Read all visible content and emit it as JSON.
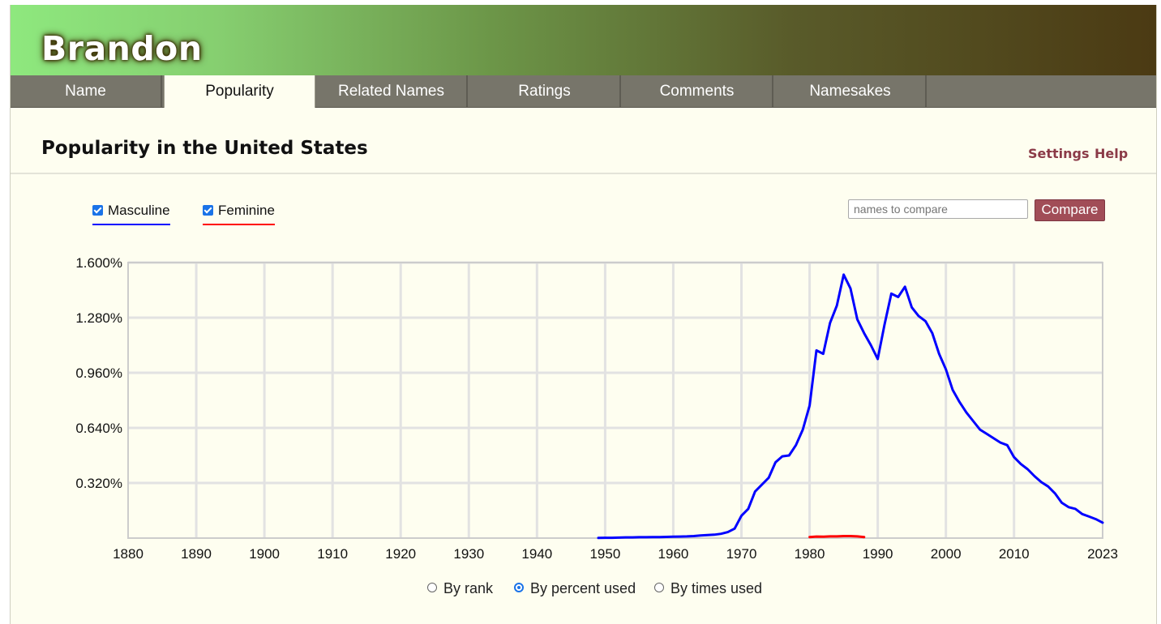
{
  "header": {
    "name": "Brandon"
  },
  "tabs": [
    {
      "label": "Name"
    },
    {
      "label": "Popularity"
    },
    {
      "label": "Related Names"
    },
    {
      "label": "Ratings"
    },
    {
      "label": "Comments"
    },
    {
      "label": "Namesakes"
    }
  ],
  "active_tab": 1,
  "section": {
    "title": "Popularity in the United States",
    "settings": "Settings",
    "help": "Help"
  },
  "filters": {
    "masculine": {
      "label": "Masculine",
      "checked": true,
      "color": "#0000ff"
    },
    "feminine": {
      "label": "Feminine",
      "checked": true,
      "color": "#ff0000"
    }
  },
  "compare": {
    "placeholder": "names to compare",
    "button": "Compare"
  },
  "radios": [
    {
      "label": "By rank",
      "selected": false
    },
    {
      "label": "By percent used",
      "selected": true
    },
    {
      "label": "By times used",
      "selected": false
    }
  ],
  "colors": {
    "accent": "#8b3a47",
    "button": "#a14d57",
    "tabbar": "#77756a"
  },
  "chart_data": {
    "type": "line",
    "ylim": [
      0,
      1.6
    ],
    "xlim": [
      1880,
      2023
    ],
    "y_ticks": [
      "1.600%",
      "1.280%",
      "0.960%",
      "0.640%",
      "0.320%"
    ],
    "y_tick_values": [
      1.6,
      1.28,
      0.96,
      0.64,
      0.32
    ],
    "x_ticks": [
      "1880",
      "1890",
      "1900",
      "1910",
      "1920",
      "1930",
      "1940",
      "1950",
      "1960",
      "1970",
      "1980",
      "1990",
      "2000",
      "2010",
      "2023"
    ],
    "x_tick_values": [
      1880,
      1890,
      1900,
      1910,
      1920,
      1930,
      1940,
      1950,
      1960,
      1970,
      1980,
      1990,
      2000,
      2010,
      2023
    ],
    "grid": true,
    "series": [
      {
        "name": "Masculine",
        "color": "#0000ff",
        "x": [
          1949,
          1950,
          1951,
          1952,
          1953,
          1954,
          1955,
          1956,
          1957,
          1958,
          1959,
          1960,
          1961,
          1962,
          1963,
          1964,
          1965,
          1966,
          1967,
          1968,
          1969,
          1970,
          1971,
          1972,
          1973,
          1974,
          1975,
          1976,
          1977,
          1978,
          1979,
          1980,
          1981,
          1982,
          1983,
          1984,
          1985,
          1986,
          1987,
          1988,
          1989,
          1990,
          1991,
          1992,
          1993,
          1994,
          1995,
          1996,
          1997,
          1998,
          1999,
          2000,
          2001,
          2002,
          2003,
          2004,
          2005,
          2006,
          2007,
          2008,
          2009,
          2010,
          2011,
          2012,
          2013,
          2014,
          2015,
          2016,
          2017,
          2018,
          2019,
          2020,
          2021,
          2022,
          2023
        ],
        "values": [
          0.001,
          0.002,
          0.002,
          0.003,
          0.004,
          0.004,
          0.005,
          0.005,
          0.006,
          0.006,
          0.007,
          0.008,
          0.009,
          0.01,
          0.012,
          0.015,
          0.018,
          0.02,
          0.025,
          0.035,
          0.055,
          0.13,
          0.17,
          0.27,
          0.31,
          0.35,
          0.44,
          0.475,
          0.48,
          0.54,
          0.63,
          0.77,
          1.09,
          1.07,
          1.25,
          1.35,
          1.53,
          1.45,
          1.27,
          1.19,
          1.12,
          1.04,
          1.24,
          1.42,
          1.4,
          1.46,
          1.34,
          1.29,
          1.26,
          1.19,
          1.07,
          0.98,
          0.86,
          0.79,
          0.73,
          0.68,
          0.63,
          0.605,
          0.58,
          0.555,
          0.54,
          0.47,
          0.43,
          0.4,
          0.36,
          0.325,
          0.3,
          0.26,
          0.205,
          0.18,
          0.17,
          0.14,
          0.125,
          0.11,
          0.09
        ]
      },
      {
        "name": "Feminine",
        "color": "#ff0000",
        "x": [
          1980,
          1981,
          1982,
          1983,
          1984,
          1985,
          1986,
          1987,
          1988
        ],
        "values": [
          0.006,
          0.009,
          0.008,
          0.01,
          0.01,
          0.012,
          0.012,
          0.01,
          0.006
        ]
      }
    ]
  }
}
